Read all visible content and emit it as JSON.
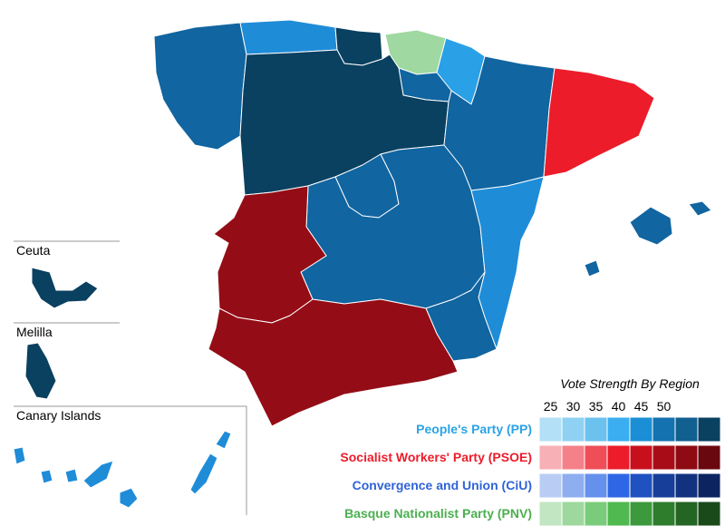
{
  "insets": [
    {
      "label": "Ceuta"
    },
    {
      "label": "Melilla"
    },
    {
      "label": "Canary Islands"
    }
  ],
  "legend": {
    "title": "Vote Strength By Region",
    "scale_labels": [
      25,
      30,
      35,
      40,
      45,
      50
    ],
    "parties": [
      {
        "name": "People's Party (PP)",
        "color": "#2aa3e6",
        "shades": [
          "#b3e0f7",
          "#8fd1f3",
          "#6cc2ef",
          "#3aaef0",
          "#1a8fd6",
          "#1572b0",
          "#11608f",
          "#0a4060"
        ]
      },
      {
        "name": "Socialist Workers' Party (PSOE)",
        "color": "#ec1c2a",
        "shades": [
          "#f7b0b5",
          "#f48189",
          "#ef4d58",
          "#ec1c2a",
          "#c8101c",
          "#a80d17",
          "#8e0b13",
          "#6a0810"
        ]
      },
      {
        "name": "Convergence and Union (CiU)",
        "color": "#2f63d8",
        "shades": [
          "#b9cdf4",
          "#8eaef0",
          "#6590ec",
          "#2e67e5",
          "#1f51c0",
          "#173f9a",
          "#123280",
          "#0c2560"
        ]
      },
      {
        "name": "Basque Nationalist Party (PNV)",
        "color": "#4caf50",
        "shades": [
          "#c2e6c2",
          "#9ed89e",
          "#7acc7a",
          "#50b950",
          "#3c9a3c",
          "#2d7d2d",
          "#246524",
          "#1a4a1a"
        ]
      }
    ]
  }
}
